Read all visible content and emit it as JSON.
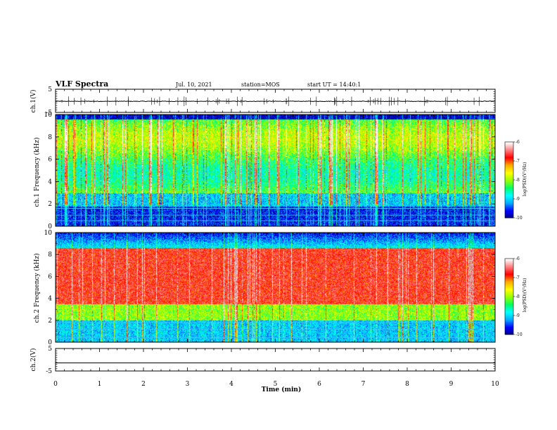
{
  "header": {
    "title": "VLF Spectra",
    "date": "Jul. 10, 2021",
    "station": "station=MOS",
    "start": "start UT = 14:40:1"
  },
  "chart_data": [
    {
      "type": "line",
      "panel": "ch1_waveform",
      "ylabel": "ch.1(V)",
      "ylim": [
        -5,
        5
      ],
      "yticks": [
        "5",
        "-5"
      ],
      "x": [
        0,
        10
      ],
      "values": [
        -0.2,
        -0.2
      ]
    },
    {
      "type": "heatmap",
      "panel": "ch1_spectrogram",
      "ylabel": "ch.1 Frequency (kHz)",
      "ylim": [
        0,
        10
      ],
      "yticks": [
        "0",
        "2",
        "4",
        "6",
        "8",
        "10"
      ],
      "xlim": [
        0,
        10
      ],
      "colorbar": {
        "label": "log(PSD)(V²/Hz)",
        "range": [
          -10,
          -6
        ],
        "ticks": [
          "-6",
          "-7",
          "-8",
          "-9",
          "-10"
        ]
      }
    },
    {
      "type": "heatmap",
      "panel": "ch2_spectrogram",
      "ylabel": "ch.2 Frequency (kHz)",
      "ylim": [
        0,
        10
      ],
      "yticks": [
        "0",
        "2",
        "4",
        "6",
        "8",
        "10"
      ],
      "xlim": [
        0,
        10
      ],
      "colorbar": {
        "label": "log(PSD)(V²/Hz)",
        "range": [
          -10,
          -6
        ],
        "ticks": [
          "-6",
          "-7",
          "-8",
          "-9",
          "-10"
        ]
      }
    },
    {
      "type": "line",
      "panel": "ch2_waveform",
      "ylabel": "ch.2(V)",
      "ylim": [
        -5,
        5
      ],
      "yticks": [
        "5",
        "-5"
      ],
      "x": [
        0,
        10
      ],
      "values": [
        -1.4,
        -1.4
      ]
    }
  ],
  "xaxis": {
    "label": "Time (min)",
    "ticks": [
      "0",
      "1",
      "2",
      "3",
      "4",
      "5",
      "6",
      "7",
      "8",
      "9",
      "10"
    ]
  },
  "colors": {
    "colormap": [
      "#000080",
      "#0000ff",
      "#00aaff",
      "#00ffff",
      "#00ff66",
      "#99ff00",
      "#ffff00",
      "#ffaa00",
      "#ff0000",
      "#ff8080",
      "#ffffff"
    ]
  }
}
